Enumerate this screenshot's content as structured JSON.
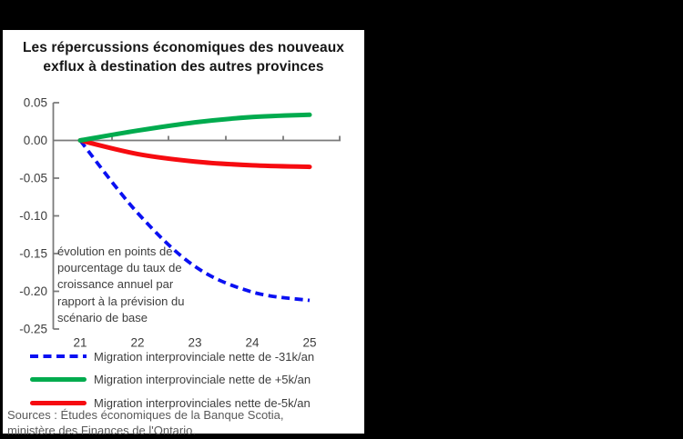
{
  "frame": {
    "background_color": "#000000",
    "panel_color": "#ffffff"
  },
  "title": "Les répercussions économiques des nouveaux\nexflux à destination des autres provinces",
  "sources": "Sources : Études économiques de la Banque Scotia,\nministère des Finances de l'Ontario.",
  "chart_data": {
    "type": "line",
    "title": "Les répercussions économiques des nouveaux exflux à destination des autres provinces",
    "note": "évolution en points de\npourcentage du taux de\ncroissance annuel par\nrapport à la prévision du\nscénario de base",
    "x": [
      21,
      22,
      23,
      24,
      25
    ],
    "x_tick_labels": [
      "21",
      "22",
      "23",
      "24",
      "25"
    ],
    "y_ticks": [
      0.05,
      0.0,
      -0.05,
      -0.1,
      -0.15,
      -0.2,
      -0.25
    ],
    "y_tick_labels": [
      "0.05",
      "0.00",
      "-0.05",
      "-0.10",
      "-0.15",
      "-0.20",
      "-0.25"
    ],
    "ylim": [
      -0.25,
      0.05
    ],
    "grid": false,
    "legend_position": "bottom-left",
    "axis_color": "#7a7a7a",
    "series": [
      {
        "name": "Migration interprovinciale nette de -31k/an",
        "color": "#0a10f2",
        "style": "dashed",
        "values": [
          0.0,
          -0.096,
          -0.167,
          -0.201,
          -0.212
        ]
      },
      {
        "name": "Migration interprovinciale nette de +5k/an",
        "color": "#00ab4e",
        "style": "solid",
        "values": [
          0.0,
          0.013,
          0.024,
          0.031,
          0.034
        ]
      },
      {
        "name": "Migration interprovinciales nette de-5k/an",
        "color": "#f60b10",
        "style": "solid",
        "values": [
          0.0,
          -0.018,
          -0.028,
          -0.033,
          -0.035
        ]
      }
    ]
  }
}
